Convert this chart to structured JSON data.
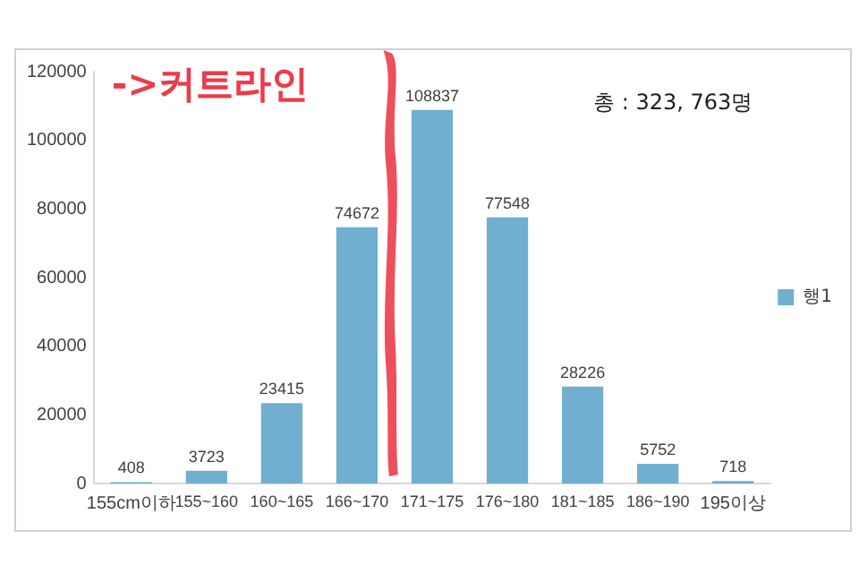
{
  "chart_data": {
    "type": "bar",
    "categories": [
      "155cm이하",
      "155~160",
      "160~165",
      "166~170",
      "171~175",
      "176~180",
      "181~185",
      "186~190",
      "195이상"
    ],
    "series": [
      {
        "name": "행1",
        "color": "#70afd0",
        "values": [
          408,
          3723,
          23415,
          74672,
          108837,
          77548,
          28226,
          5752,
          718
        ]
      }
    ],
    "ylim": [
      0,
      120000
    ],
    "yticks": [
      0,
      20000,
      40000,
      60000,
      80000,
      100000,
      120000
    ],
    "grid": false,
    "legend": "right",
    "data_labels": true,
    "annotations": [
      "->커트라인",
      "총 : 323, 763명"
    ]
  }
}
